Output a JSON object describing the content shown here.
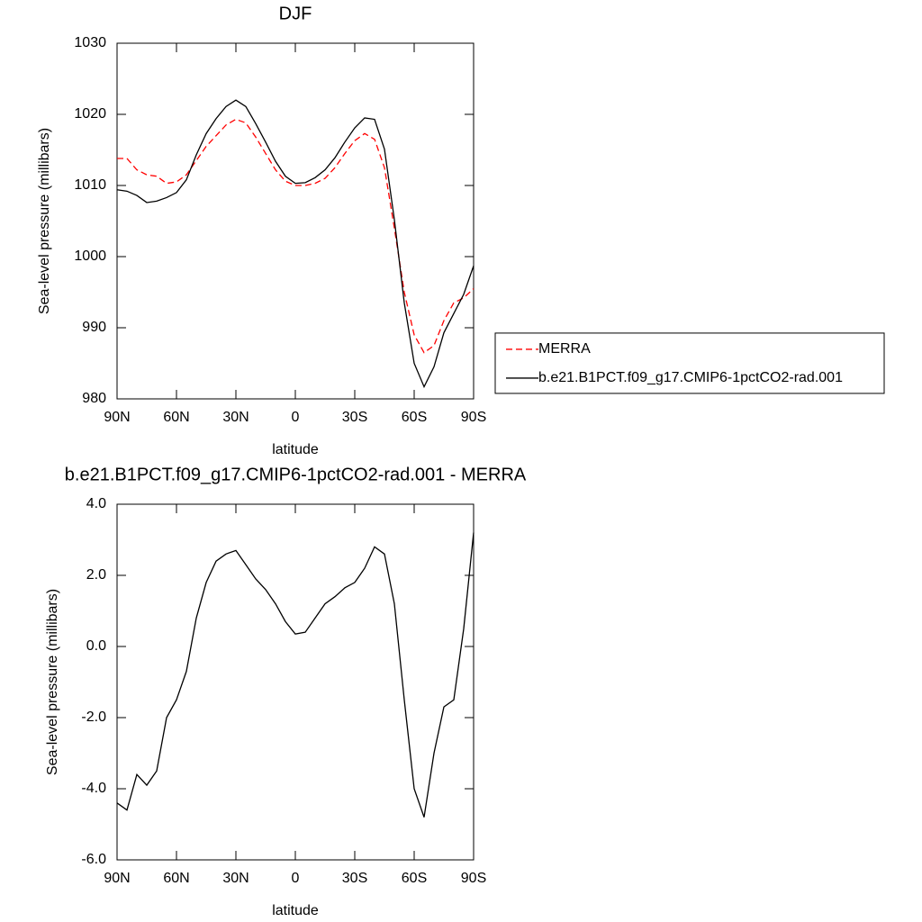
{
  "chart_data": [
    {
      "type": "line",
      "title": "DJF",
      "x_label": "latitude",
      "y_label": "Sea-level pressure (millibars)",
      "x": [
        90,
        85,
        80,
        75,
        70,
        65,
        60,
        55,
        50,
        45,
        40,
        35,
        30,
        25,
        20,
        15,
        10,
        5,
        0,
        -5,
        -10,
        -15,
        -20,
        -25,
        -30,
        -35,
        -40,
        -45,
        -50,
        -55,
        -60,
        -65,
        -70,
        -75,
        -80,
        -85,
        -90
      ],
      "xlim": [
        90,
        -90
      ],
      "xticks": [
        {
          "value": 90,
          "label": "90N"
        },
        {
          "value": 60,
          "label": "60N"
        },
        {
          "value": 30,
          "label": "30N"
        },
        0,
        {
          "value": -30,
          "label": "30S"
        },
        {
          "value": -60,
          "label": "60S"
        },
        {
          "value": -90,
          "label": "90S"
        }
      ],
      "ylim": [
        980,
        1030
      ],
      "yticks": [
        980,
        990,
        1000,
        1010,
        1020,
        1030
      ],
      "legend": "right",
      "series": [
        {
          "name": "MERRA",
          "color": "#ff0000",
          "dashed": true,
          "values": [
            1013.8,
            1013.8,
            1012.2,
            1011.5,
            1011.3,
            1010.3,
            1010.5,
            1011.5,
            1013.5,
            1015.5,
            1017.0,
            1018.5,
            1019.3,
            1018.8,
            1016.8,
            1014.5,
            1012.2,
            1010.6,
            1010.0,
            1010.0,
            1010.3,
            1011.0,
            1012.5,
            1014.5,
            1016.3,
            1017.3,
            1016.5,
            1012.5,
            1004.0,
            995.0,
            989.0,
            986.5,
            987.5,
            991.0,
            993.5,
            994.2,
            995.5
          ]
        },
        {
          "name": "b.e21.B1PCT.f09_g17.CMIP6-1pctCO2-rad.001",
          "color": "#000000",
          "dashed": false,
          "values": [
            1009.4,
            1009.2,
            1008.6,
            1007.6,
            1007.8,
            1008.3,
            1009.0,
            1010.8,
            1014.3,
            1017.3,
            1019.4,
            1021.1,
            1022.0,
            1021.1,
            1018.7,
            1016.1,
            1013.4,
            1011.3,
            1010.3,
            1010.4,
            1011.1,
            1012.2,
            1013.9,
            1016.1,
            1018.1,
            1019.5,
            1019.3,
            1015.1,
            1005.2,
            993.5,
            985.0,
            981.7,
            984.5,
            989.3,
            992.0,
            994.7,
            998.7
          ]
        }
      ]
    },
    {
      "type": "line",
      "title": "b.e21.B1PCT.f09_g17.CMIP6-1pctCO2-rad.001 - MERRA",
      "x_label": "latitude",
      "y_label": "Sea-level pressure (millibars)",
      "x": [
        90,
        85,
        80,
        75,
        70,
        65,
        60,
        55,
        50,
        45,
        40,
        35,
        30,
        25,
        20,
        15,
        10,
        5,
        0,
        -5,
        -10,
        -15,
        -20,
        -25,
        -30,
        -35,
        -40,
        -45,
        -50,
        -55,
        -60,
        -65,
        -70,
        -75,
        -80,
        -85,
        -90
      ],
      "xlim": [
        90,
        -90
      ],
      "xticks": [
        {
          "value": 90,
          "label": "90N"
        },
        {
          "value": 60,
          "label": "60N"
        },
        {
          "value": 30,
          "label": "30N"
        },
        0,
        {
          "value": -30,
          "label": "30S"
        },
        {
          "value": -60,
          "label": "60S"
        },
        {
          "value": -90,
          "label": "90S"
        }
      ],
      "ylim": [
        -6,
        4
      ],
      "yticks": [
        {
          "value": -6,
          "label": "-6.0"
        },
        {
          "value": -4,
          "label": "-4.0"
        },
        {
          "value": -2,
          "label": "-2.0"
        },
        {
          "value": 0,
          "label": "0.0"
        },
        {
          "value": 2,
          "label": "2.0"
        },
        {
          "value": 4,
          "label": "4.0"
        }
      ],
      "series": [
        {
          "color": "#000000",
          "dashed": false,
          "values": [
            -4.4,
            -4.6,
            -3.6,
            -3.9,
            -3.5,
            -2.0,
            -1.5,
            -0.7,
            0.8,
            1.8,
            2.4,
            2.6,
            2.7,
            2.3,
            1.9,
            1.6,
            1.2,
            0.7,
            0.35,
            0.4,
            0.8,
            1.2,
            1.4,
            1.65,
            1.8,
            2.2,
            2.8,
            2.6,
            1.2,
            -1.5,
            -4.0,
            -4.8,
            -3.0,
            -1.7,
            -1.5,
            0.5,
            3.2
          ]
        }
      ]
    }
  ]
}
